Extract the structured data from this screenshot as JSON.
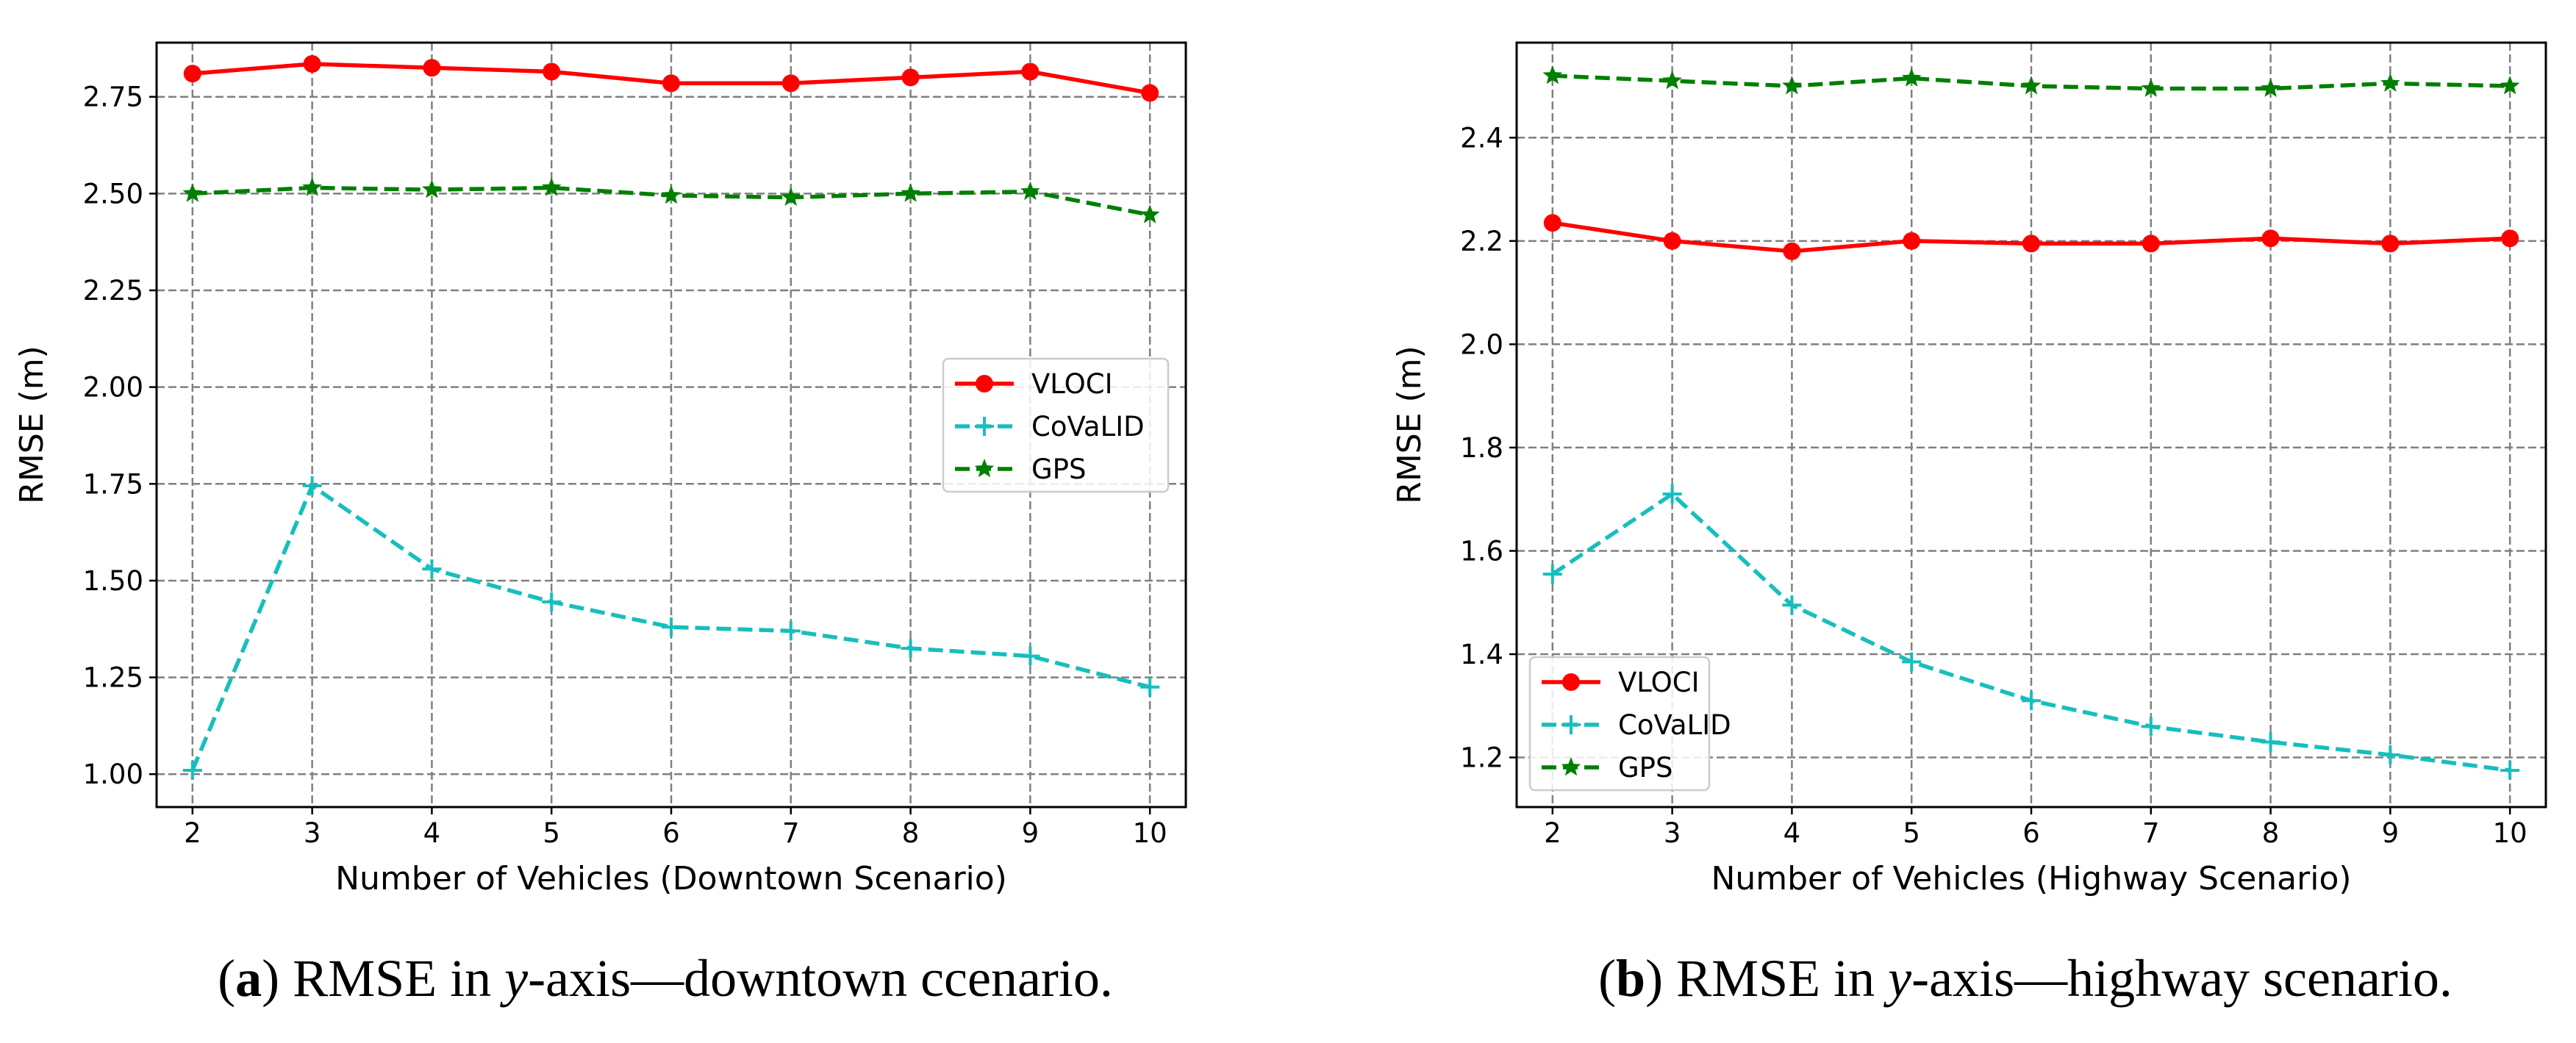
{
  "chart_data": [
    {
      "type": "line",
      "xlabel": "Number of Vehicles (Downtown Scenario)",
      "ylabel": "RMSE (m)",
      "categories": [
        2,
        3,
        4,
        5,
        6,
        7,
        8,
        9,
        10
      ],
      "xlim": [
        1.7,
        10.3
      ],
      "ylim": [
        0.915,
        2.89
      ],
      "yticks": [
        1.0,
        1.25,
        1.5,
        1.75,
        2.0,
        2.25,
        2.5,
        2.75
      ],
      "ytick_labels": [
        "1.00",
        "1.25",
        "1.50",
        "1.75",
        "2.00",
        "2.25",
        "2.50",
        "2.75"
      ],
      "grid": true,
      "legend_position": "center-right",
      "series": [
        {
          "name": "VLOCI",
          "color": "#ff0000",
          "style": "solid",
          "marker": "circle",
          "values": [
            2.81,
            2.835,
            2.825,
            2.815,
            2.785,
            2.785,
            2.8,
            2.815,
            2.76
          ]
        },
        {
          "name": "CoVaLID",
          "color": "#17bebe",
          "style": "dashed",
          "marker": "plus",
          "values": [
            1.01,
            1.745,
            1.53,
            1.445,
            1.38,
            1.37,
            1.325,
            1.305,
            1.225
          ]
        },
        {
          "name": "GPS",
          "color": "#007f00",
          "style": "dashed",
          "marker": "star",
          "values": [
            2.5,
            2.515,
            2.51,
            2.515,
            2.495,
            2.49,
            2.5,
            2.505,
            2.445
          ]
        }
      ],
      "caption": {
        "label": "a",
        "text_before": "RMSE in ",
        "variable": "y",
        "text_after": "-axis—downtown ccenario."
      }
    },
    {
      "type": "line",
      "xlabel": "Number of Vehicles (Highway Scenario)",
      "ylabel": "RMSE (m)",
      "categories": [
        2,
        3,
        4,
        5,
        6,
        7,
        8,
        9,
        10
      ],
      "xlim": [
        1.7,
        10.3
      ],
      "ylim": [
        1.104,
        2.584
      ],
      "yticks": [
        1.2,
        1.4,
        1.6,
        1.8,
        2.0,
        2.2,
        2.4
      ],
      "ytick_labels": [
        "1.2",
        "1.4",
        "1.6",
        "1.8",
        "2.0",
        "2.2",
        "2.4"
      ],
      "grid": true,
      "legend_position": "lower-left",
      "series": [
        {
          "name": "VLOCI",
          "color": "#ff0000",
          "style": "solid",
          "marker": "circle",
          "values": [
            2.235,
            2.2,
            2.18,
            2.2,
            2.195,
            2.195,
            2.205,
            2.195,
            2.205
          ]
        },
        {
          "name": "CoVaLID",
          "color": "#17bebe",
          "style": "dashed",
          "marker": "plus",
          "values": [
            1.555,
            1.71,
            1.495,
            1.385,
            1.31,
            1.26,
            1.23,
            1.205,
            1.175
          ]
        },
        {
          "name": "GPS",
          "color": "#007f00",
          "style": "dashed",
          "marker": "star",
          "values": [
            2.52,
            2.51,
            2.5,
            2.515,
            2.5,
            2.495,
            2.495,
            2.505,
            2.5
          ]
        }
      ],
      "caption": {
        "label": "b",
        "text_before": "RMSE in ",
        "variable": "y",
        "text_after": "-axis—highway scenario."
      }
    }
  ]
}
